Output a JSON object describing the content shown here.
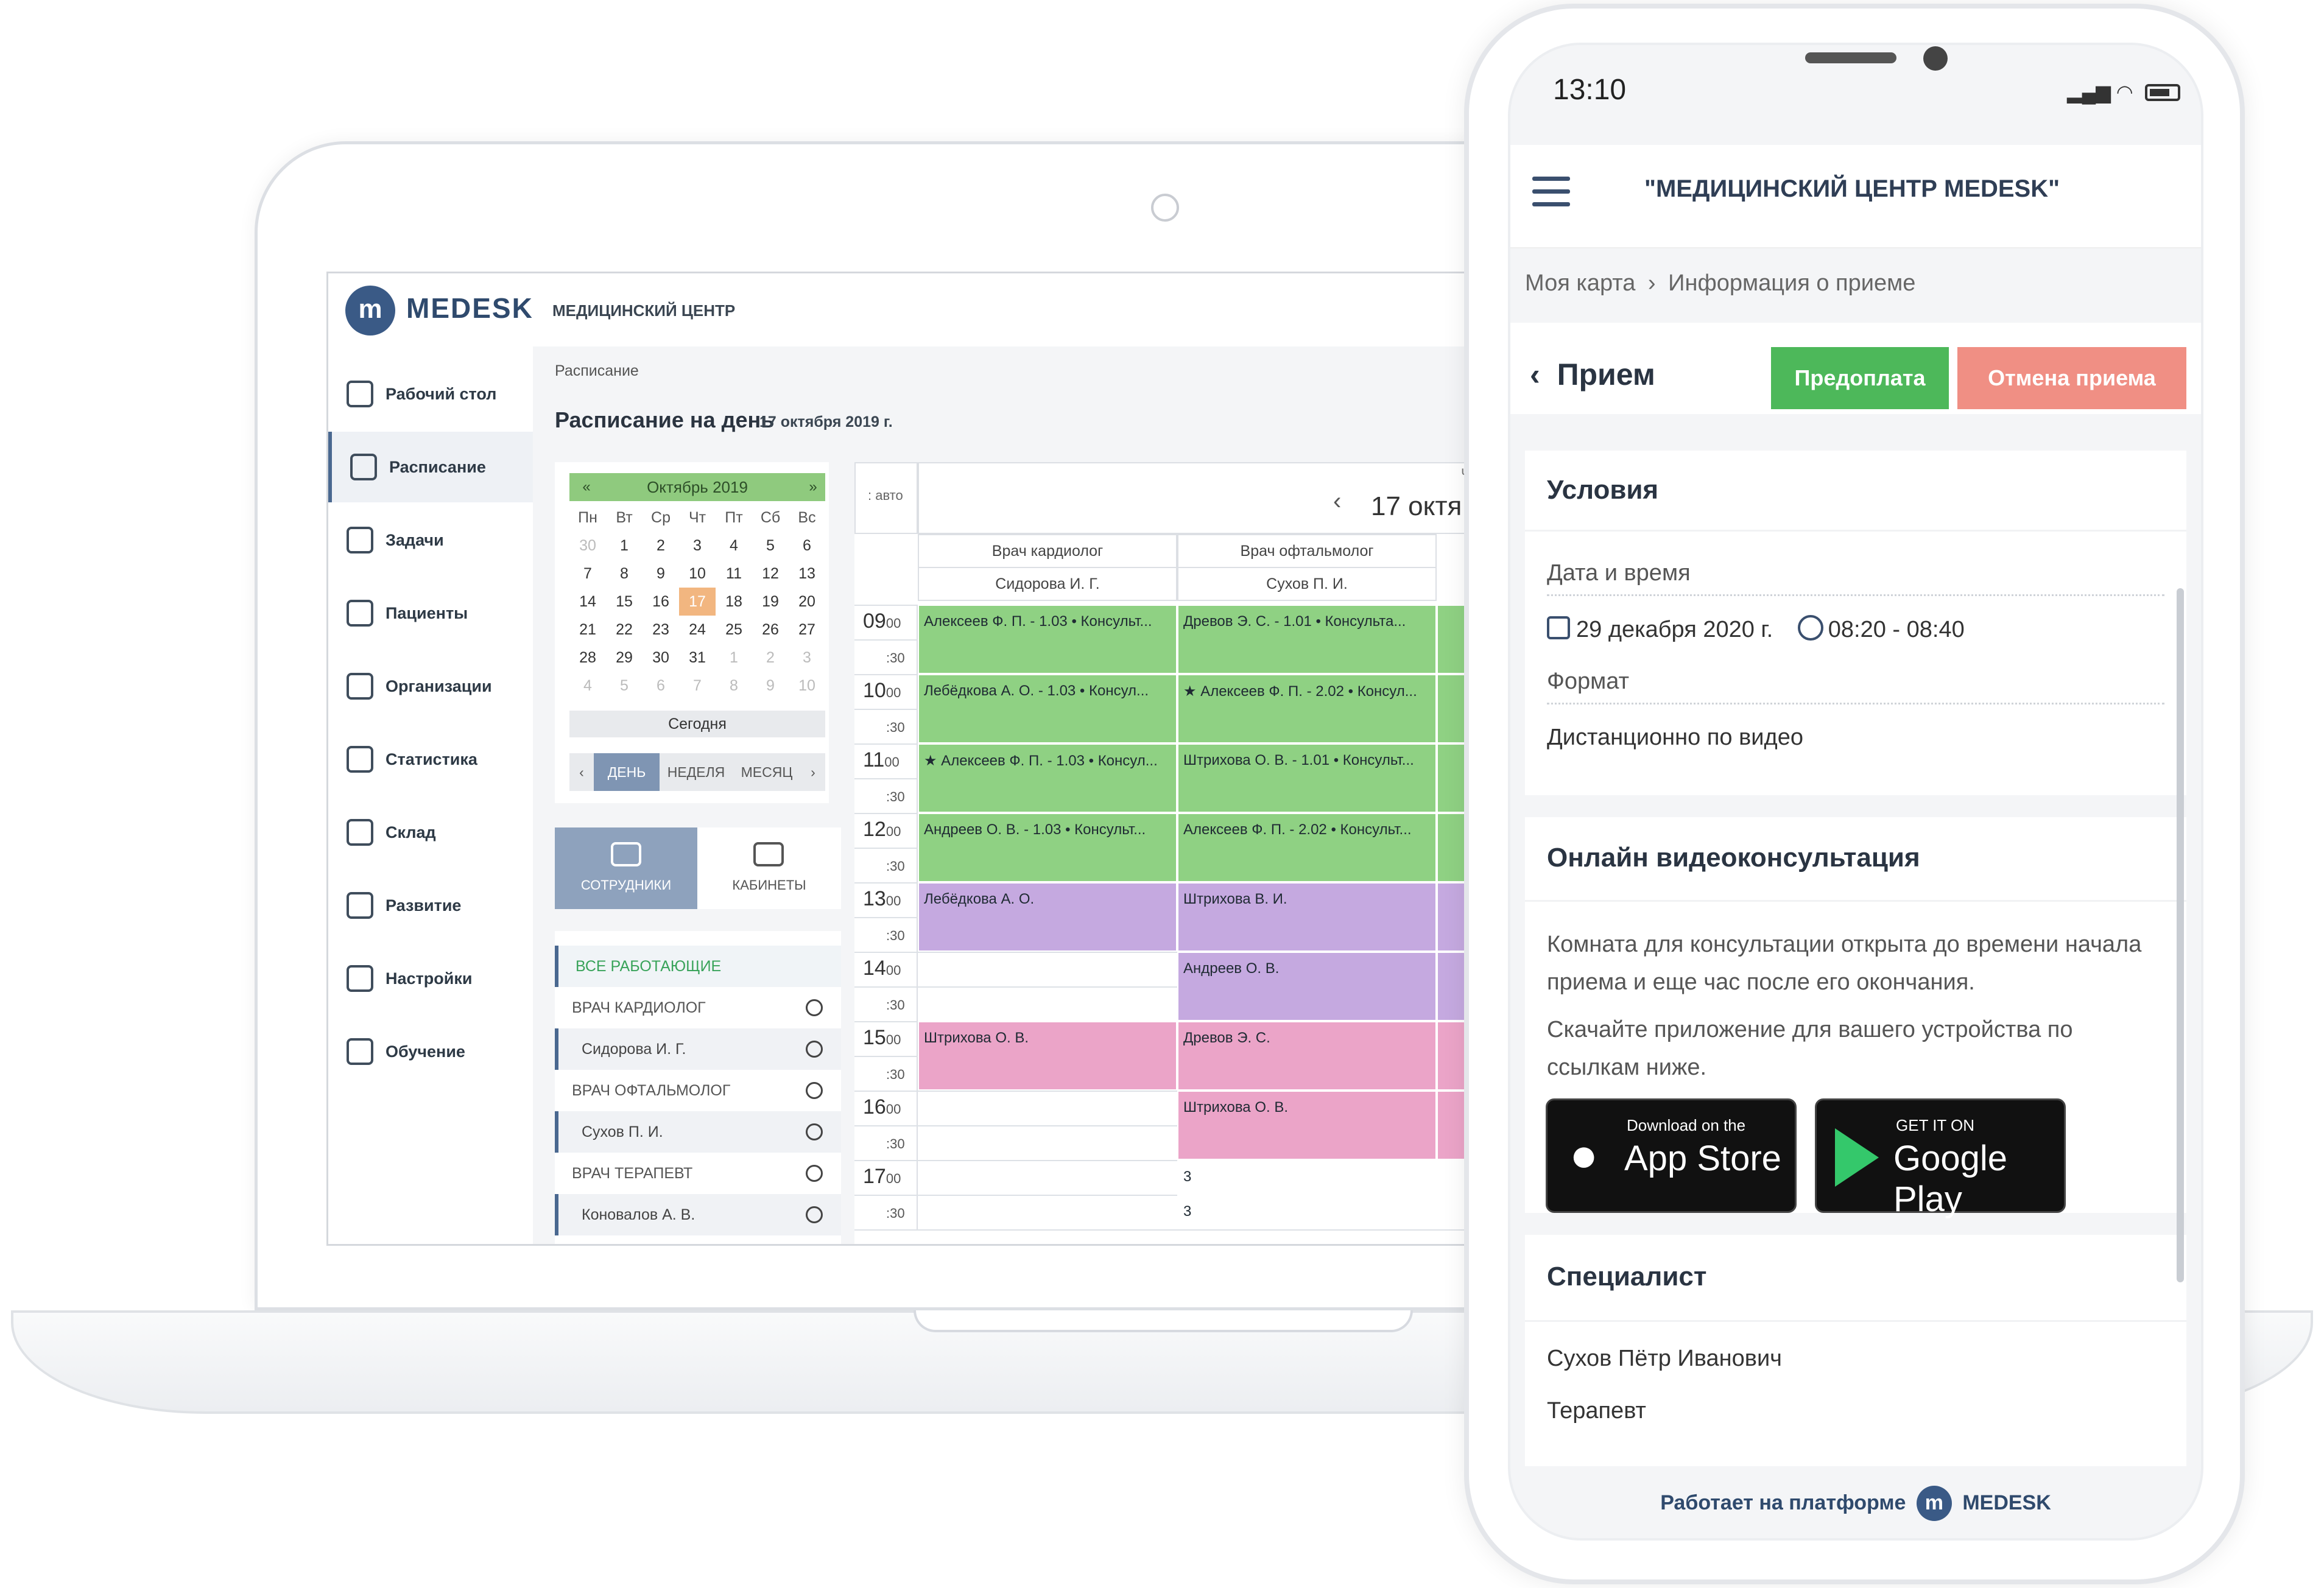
{
  "laptop": {
    "header": {
      "logo_mark": "m",
      "logo_text": "MEDESK",
      "org_name": "МЕДИЦИНСКИЙ ЦЕНТР"
    },
    "sidebar": {
      "items": [
        {
          "label": "Рабочий стол",
          "icon": "dashboard-icon"
        },
        {
          "label": "Расписание",
          "icon": "calendar-icon",
          "active": true
        },
        {
          "label": "Задачи",
          "icon": "layers-icon"
        },
        {
          "label": "Пациенты",
          "icon": "users-icon"
        },
        {
          "label": "Организации",
          "icon": "building-icon"
        },
        {
          "label": "Статистика",
          "icon": "pie-chart-icon"
        },
        {
          "label": "Склад",
          "icon": "box-icon"
        },
        {
          "label": "Развитие",
          "icon": "puzzle-icon"
        },
        {
          "label": "Настройки",
          "icon": "gear-icon"
        },
        {
          "label": "Обучение",
          "icon": "graduation-cap-icon"
        }
      ]
    },
    "breadcrumb": "Расписание",
    "page_title": "Расписание на день",
    "page_date": "17 октября 2019 г.",
    "mini_calendar": {
      "month": "Октябрь 2019",
      "prev": "«",
      "next": "»",
      "weekdays": [
        "Пн",
        "Вт",
        "Ср",
        "Чт",
        "Пт",
        "Сб",
        "Вс"
      ],
      "weeks": [
        [
          "30",
          "1",
          "2",
          "3",
          "4",
          "5",
          "6"
        ],
        [
          "7",
          "8",
          "9",
          "10",
          "11",
          "12",
          "13"
        ],
        [
          "14",
          "15",
          "16",
          "17",
          "18",
          "19",
          "20"
        ],
        [
          "21",
          "22",
          "23",
          "24",
          "25",
          "26",
          "27"
        ],
        [
          "28",
          "29",
          "30",
          "31",
          "1",
          "2",
          "3"
        ],
        [
          "4",
          "5",
          "6",
          "7",
          "8",
          "9",
          "10"
        ]
      ],
      "today_label": "Сегодня",
      "views": [
        "ДЕНЬ",
        "НЕДЕЛЯ",
        "МЕСЯЦ"
      ]
    },
    "staff_tabs": {
      "staff": "СОТРУДНИКИ",
      "rooms": "КАБИНЕТЫ"
    },
    "staff_list": [
      {
        "label": "ВСЕ РАБОТАЮЩИЕ",
        "kind": "all"
      },
      {
        "label": "ВРАЧ КАРДИОЛОГ",
        "kind": "group"
      },
      {
        "label": "Сидорова И. Г.",
        "kind": "doc"
      },
      {
        "label": "ВРАЧ ОФТАЛЬМОЛОГ",
        "kind": "group"
      },
      {
        "label": "Сухов П. И.",
        "kind": "doc"
      },
      {
        "label": "ВРАЧ ТЕРАПЕВТ",
        "kind": "group"
      },
      {
        "label": "Коновалов А. В.",
        "kind": "doc"
      }
    ],
    "grid": {
      "auto": ": авто",
      "dow": "ЧТ",
      "day_label": "17 октя",
      "columns": [
        {
          "role": "Врач кардиолог",
          "name": "Сидорова И. Г."
        },
        {
          "role": "Врач офтальмолог",
          "name": "Сухов П. И."
        }
      ],
      "hours": [
        "09",
        "10",
        "11",
        "12",
        "13",
        "14",
        "15",
        "16",
        "17"
      ],
      "minute_00": "00",
      "minute_30": ":30",
      "appointments": [
        {
          "col": 0,
          "row": 0,
          "span": 2,
          "color": "green",
          "text": "Алексеев Ф. П. - 1.03 • Консульт..."
        },
        {
          "col": 1,
          "row": 0,
          "span": 2,
          "color": "green",
          "text": "Древов Э. С. - 1.01 • Консульта..."
        },
        {
          "col": 0,
          "row": 2,
          "span": 2,
          "color": "green",
          "text": "Лебёдкова А. О. - 1.03 • Консул..."
        },
        {
          "col": 1,
          "row": 2,
          "span": 2,
          "color": "green",
          "text": "★ Алексеев Ф. П. - 2.02 • Консул..."
        },
        {
          "col": 0,
          "row": 4,
          "span": 2,
          "color": "green",
          "text": "★ Алексеев Ф. П. - 1.03 • Консул..."
        },
        {
          "col": 1,
          "row": 4,
          "span": 2,
          "color": "green",
          "text": "Штрихова О. В. - 1.01 • Консульт..."
        },
        {
          "col": 0,
          "row": 6,
          "span": 2,
          "color": "green",
          "text": "Андреев О. В. - 1.03 • Консульт..."
        },
        {
          "col": 1,
          "row": 6,
          "span": 2,
          "color": "green",
          "text": "Алексеев Ф. П. - 2.02 • Консульт..."
        },
        {
          "col": 0,
          "row": 8,
          "span": 2,
          "color": "purple",
          "text": "Лебёдкова А. О."
        },
        {
          "col": 1,
          "row": 8,
          "span": 2,
          "color": "purple",
          "text": "Штрихова В. И."
        },
        {
          "col": 1,
          "row": 10,
          "span": 2,
          "color": "purple",
          "text": "Андреев О. В."
        },
        {
          "col": 0,
          "row": 12,
          "span": 2,
          "color": "pink",
          "text": "Штрихова О. В."
        },
        {
          "col": 1,
          "row": 12,
          "span": 2,
          "color": "pink",
          "text": "Древов Э. С."
        },
        {
          "col": 1,
          "row": 14,
          "span": 2,
          "color": "pink",
          "text": "Штрихова О. В."
        },
        {
          "col": 1,
          "row": 16,
          "span": 1,
          "color": "empty",
          "text": "3"
        },
        {
          "col": 1,
          "row": 17,
          "span": 1,
          "color": "empty",
          "text": "3"
        }
      ]
    }
  },
  "phone": {
    "status_time": "13:10",
    "header_title": "\"МЕДИЦИНСКИЙ ЦЕНТР MEDESK\"",
    "breadcrumb": {
      "root": "Моя карта",
      "sep": "›",
      "current": "Информация о приеме"
    },
    "back": "‹",
    "page_title": "Прием",
    "btn_prepay": "Предоплата",
    "btn_cancel": "Отмена приема",
    "conditions": {
      "title": "Условия",
      "date_label": "Дата и время",
      "date": "29 декабря 2020 г.",
      "time": "08:20 - 08:40",
      "format_label": "Формат",
      "format": "Дистанционно по видео"
    },
    "video": {
      "title": "Онлайн видеоконсультация",
      "text1": "Комната для консультации открыта до времени начала приема и еще час после его окончания.",
      "text2": "Скачайте приложение для вашего устройства по ссылкам ниже.",
      "appstore_small": "Download on the",
      "appstore_big": "App Store",
      "gplay_small": "GET IT ON",
      "gplay_big": "Google Play"
    },
    "specialist": {
      "title": "Специалист",
      "name": "Сухов Пётр Иванович",
      "role": "Терапевт"
    },
    "footer": {
      "text": "Работает на платформе",
      "brand": "MEDESK",
      "mark": "m"
    }
  },
  "colors": {
    "green": "#8fd183",
    "purple": "#c5a9e0",
    "pink": "#eba4c8",
    "accent": "#4a6890",
    "prepay": "#4db85a",
    "cancel": "#f08f84"
  }
}
